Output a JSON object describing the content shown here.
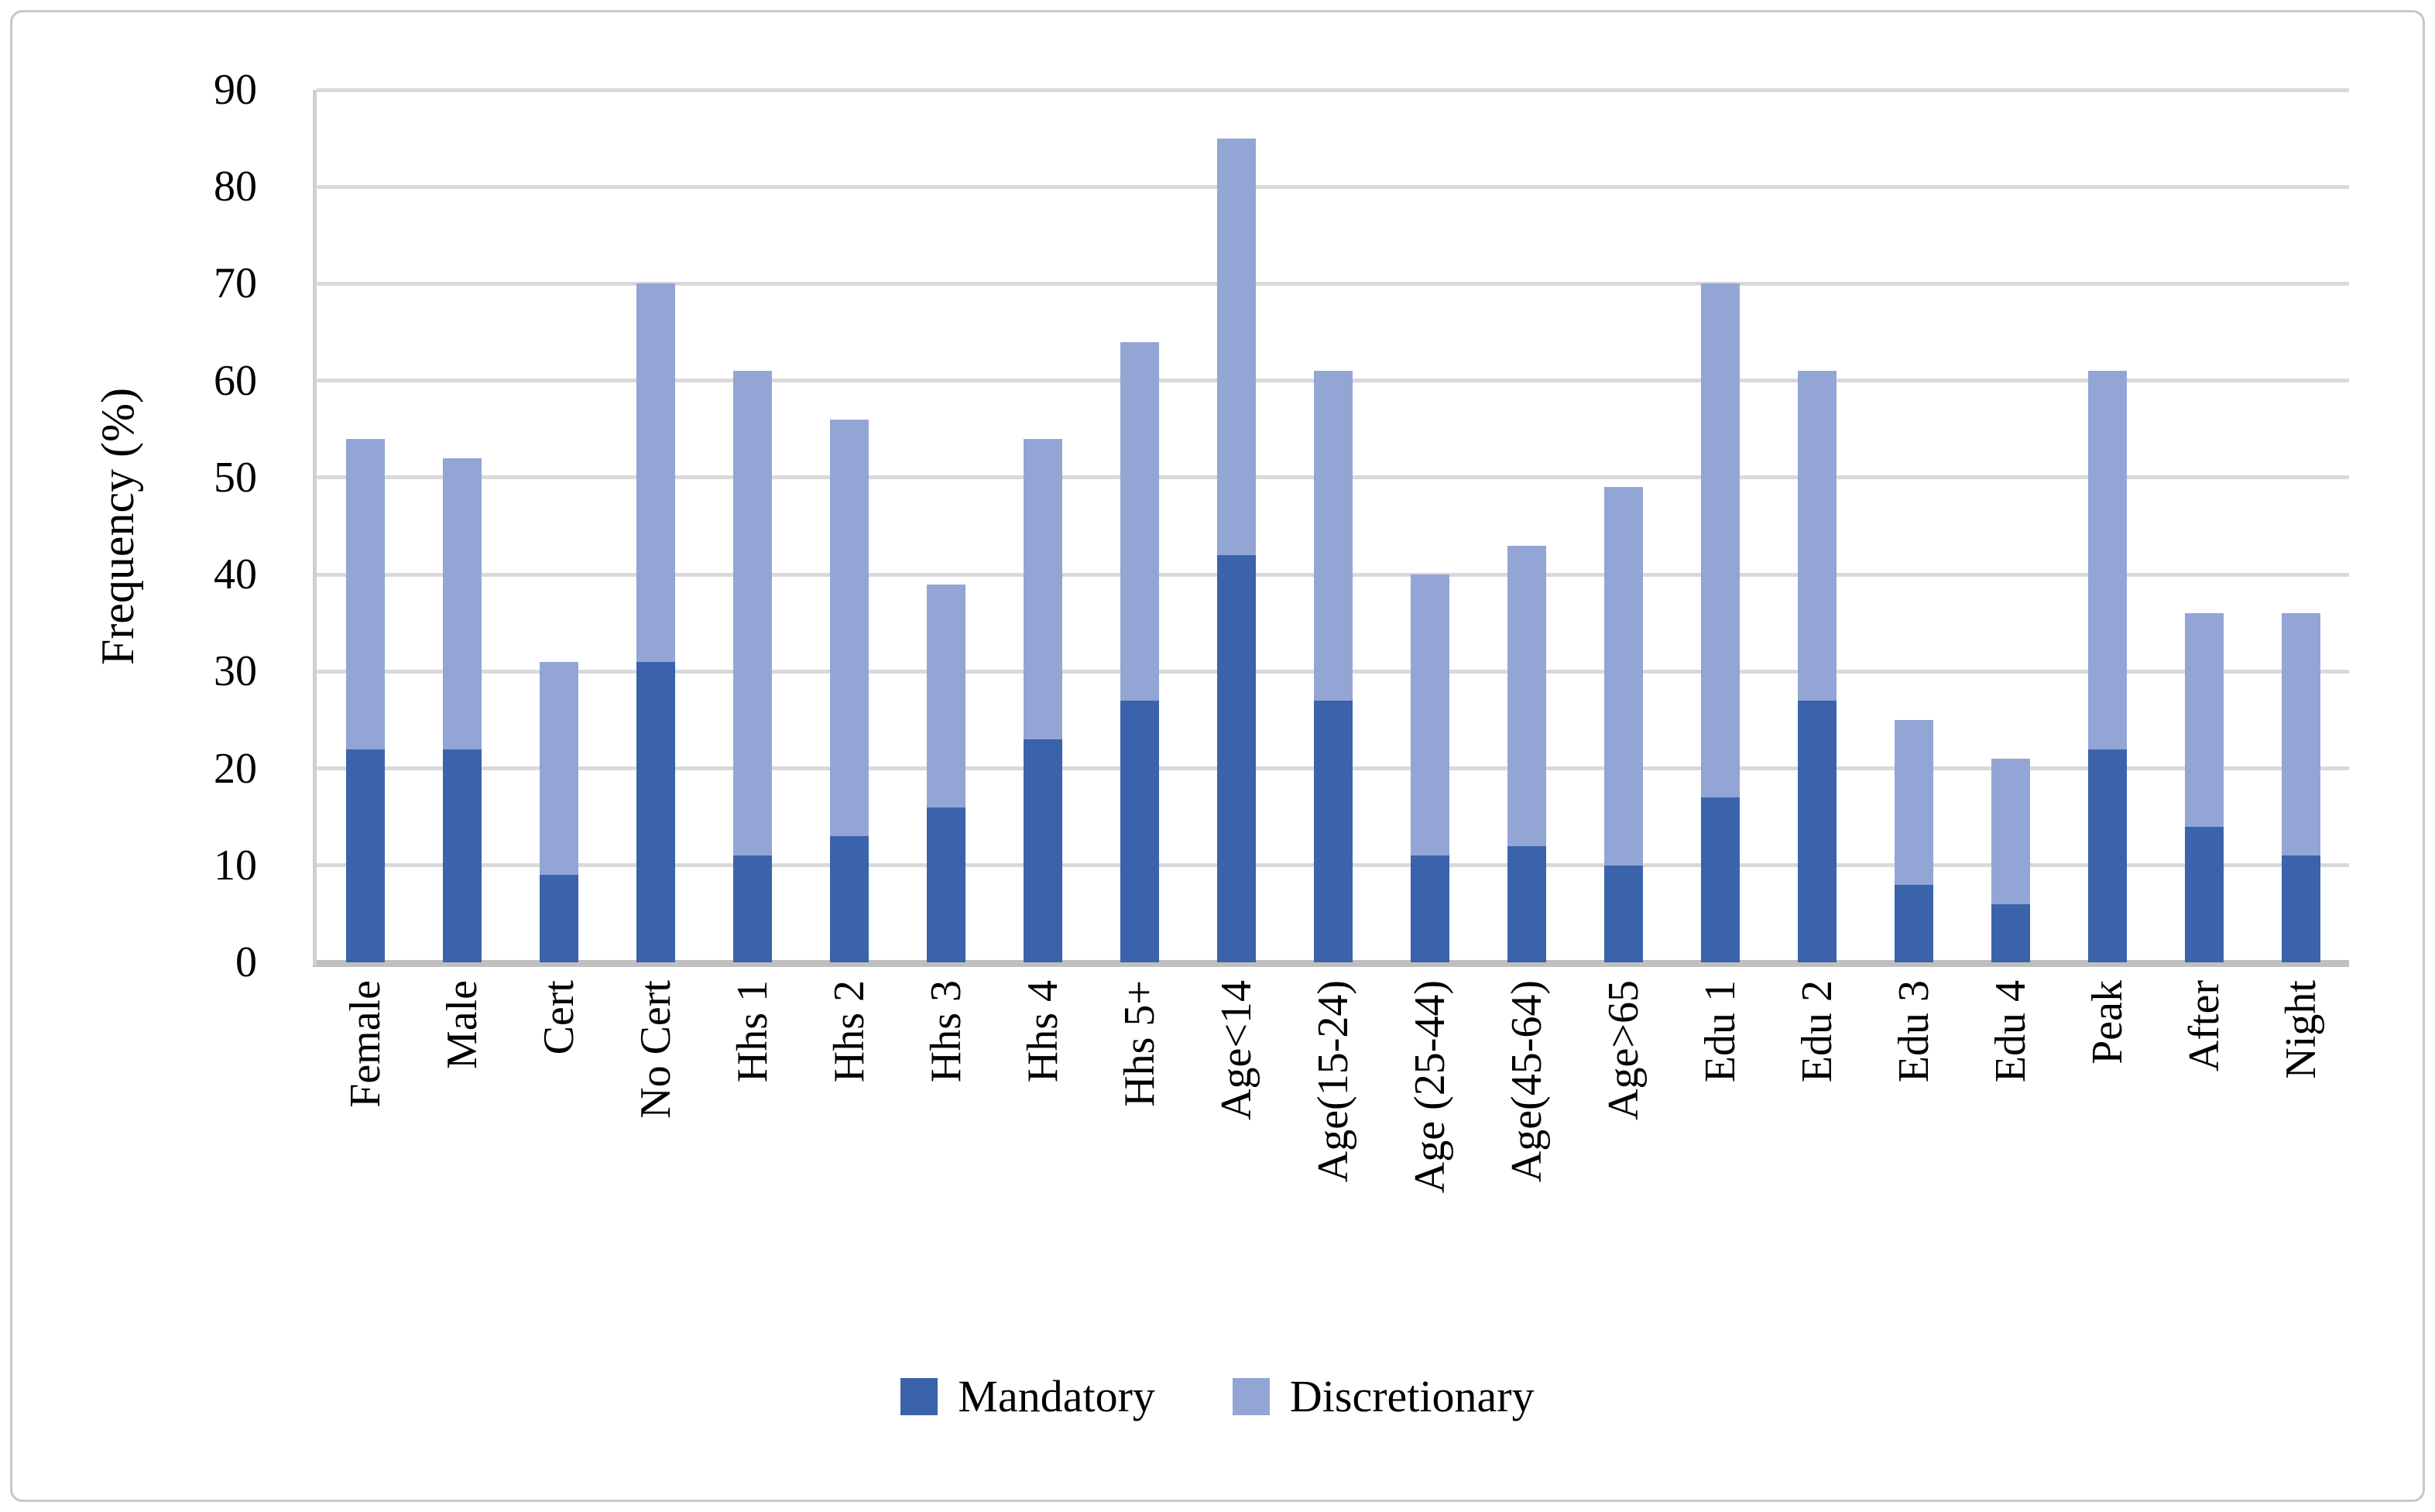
{
  "chart_data": {
    "type": "bar",
    "stacked": true,
    "ylabel": "Frequency (%)",
    "xlabel": "",
    "ylim": [
      0,
      90
    ],
    "yticks": [
      0,
      10,
      20,
      30,
      40,
      50,
      60,
      70,
      80,
      90
    ],
    "grid": "horizontal",
    "legend_position": "bottom-center",
    "categories": [
      "Female",
      "Male",
      "Cert",
      "No Cert",
      "Hhs 1",
      "Hhs 2",
      "Hhs 3",
      "Hhs 4",
      "Hhs 5+",
      "Age<14",
      "Age(15-24)",
      "Age (25-44)",
      "Age(45-64)",
      "Age>65",
      "Edu 1",
      "Edu 2",
      "Edu 3",
      "Edu 4",
      "Peak",
      "After",
      "Night"
    ],
    "series": [
      {
        "name": "Mandatory",
        "color": "#3b63ab",
        "values": [
          22,
          22,
          9,
          31,
          11,
          13,
          16,
          23,
          27,
          42,
          27,
          11,
          12,
          10,
          17,
          27,
          8,
          6,
          22,
          14,
          11
        ]
      },
      {
        "name": "Discretionary",
        "color": "#93a5d5",
        "values": [
          32,
          30,
          22,
          39,
          50,
          43,
          23,
          31,
          37,
          43,
          34,
          29,
          31,
          39,
          53,
          34,
          17,
          15,
          39,
          22,
          25
        ]
      }
    ],
    "stack_totals": [
      54,
      52,
      31,
      70,
      61,
      56,
      39,
      54,
      64,
      85,
      61,
      40,
      43,
      49,
      70,
      61,
      25,
      21,
      61,
      36,
      36
    ]
  },
  "colors": {
    "mandatory": "#3b63ab",
    "discretionary": "#93a5d5",
    "gridline": "#d9d9d9",
    "axis_line": "#bfbfbf",
    "plot_left_border": "#d0d0d0",
    "figure_border": "#c8c8c8",
    "text": "#000000",
    "background": "#ffffff"
  },
  "legend": {
    "items": [
      {
        "label": "Mandatory"
      },
      {
        "label": "Discretionary"
      }
    ]
  }
}
